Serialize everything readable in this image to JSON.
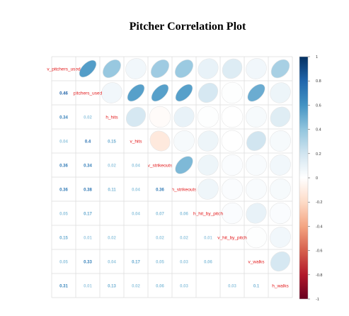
{
  "chart_data": {
    "type": "heatmap",
    "title": "Pitcher Correlation Plot",
    "variables": [
      "v_pitchers_used",
      "pitchers_used",
      "h_hits",
      "v_hits",
      "v_strikeouts",
      "h_strikeouts",
      "h_hit_by_pitch",
      "v_hit_by_pitch",
      "v_walks",
      "h_walks"
    ],
    "matrix": [
      [
        1,
        0.46,
        0.34,
        0.04,
        0.36,
        0.36,
        0.05,
        0.15,
        0.05,
        0.31
      ],
      [
        0.46,
        1,
        0.02,
        0.4,
        0.34,
        0.38,
        0.17,
        0.01,
        0.33,
        0.01
      ],
      [
        0.34,
        0.02,
        1,
        0.15,
        0.02,
        0.11,
        0.0,
        0.02,
        0.04,
        0.13
      ],
      [
        0.04,
        0.4,
        0.15,
        1,
        0.04,
        0.04,
        0.04,
        0.0,
        0.17,
        0.02
      ],
      [
        0.36,
        0.34,
        0.02,
        0.04,
        1,
        0.36,
        0.07,
        0.02,
        0.05,
        0.06
      ],
      [
        0.36,
        0.38,
        0.11,
        0.04,
        0.36,
        1,
        0.06,
        0.02,
        0.03,
        0.03
      ],
      [
        0.05,
        0.17,
        0.0,
        0.04,
        0.07,
        0.06,
        1,
        0.01,
        0.06,
        0.01
      ],
      [
        0.15,
        0.01,
        0.02,
        0.0,
        0.02,
        0.02,
        0.01,
        1,
        0.01,
        0.03
      ],
      [
        0.05,
        0.33,
        0.04,
        0.17,
        0.05,
        0.03,
        0.06,
        0.01,
        1,
        0.1
      ],
      [
        0.31,
        0.01,
        0.13,
        0.02,
        0.06,
        0.03,
        0.01,
        0.03,
        0.1,
        1
      ]
    ],
    "upper_triangle": [
      [
        0,
        0.56,
        0.38,
        0.06,
        0.36,
        0.37,
        0.1,
        0.15,
        0.06,
        0.33
      ],
      [
        0.56,
        0,
        0.06,
        0.55,
        0.55,
        0.55,
        0.18,
        0.01,
        0.5,
        0.08
      ],
      [
        0.38,
        0.06,
        0,
        0.18,
        -0.02,
        0.1,
        0.01,
        0.0,
        0.04,
        0.14
      ],
      [
        0.06,
        0.55,
        0.18,
        0,
        -0.12,
        0.04,
        0.08,
        0.0,
        0.2,
        0.04
      ],
      [
        0.36,
        0.55,
        -0.02,
        -0.12,
        0,
        0.45,
        0.08,
        0.02,
        0.03,
        0.06
      ],
      [
        0.37,
        0.55,
        0.1,
        0.04,
        0.45,
        0,
        0.07,
        0.02,
        0.03,
        0.04
      ],
      [
        0.1,
        0.18,
        0.01,
        0.08,
        0.08,
        0.07,
        0,
        0.02,
        0.1,
        0.02
      ],
      [
        0.15,
        0.01,
        0.0,
        0.0,
        0.02,
        0.02,
        0.02,
        0,
        0.01,
        0.06
      ],
      [
        0.06,
        0.5,
        0.04,
        0.2,
        0.03,
        0.03,
        0.1,
        0.01,
        0,
        0.18
      ],
      [
        0.33,
        0.08,
        0.14,
        0.04,
        0.06,
        0.04,
        0.02,
        0.06,
        0.18,
        0
      ]
    ],
    "lower_labels": [
      [],
      [
        "0.46"
      ],
      [
        "0.34",
        "0.02"
      ],
      [
        "0.04",
        "0.4",
        "0.15"
      ],
      [
        "0.36",
        "0.34",
        "0.02",
        "0.04"
      ],
      [
        "0.36",
        "0.38",
        "0.11",
        "0.04",
        "0.36"
      ],
      [
        "0.05",
        "0.17",
        "",
        "0.04",
        "0.07",
        "0.06"
      ],
      [
        "0.15",
        "0.01",
        "0.02",
        "",
        "0.02",
        "0.02",
        "0.01"
      ],
      [
        "0.05",
        "0.33",
        "0.04",
        "0.17",
        "0.05",
        "0.03",
        "0.06",
        ""
      ],
      [
        "0.31",
        "0.01",
        "0.13",
        "0.02",
        "0.06",
        "0.03",
        "",
        "0.03",
        "0.1"
      ]
    ],
    "colorbar": {
      "range": [
        -1,
        1
      ],
      "ticks": [
        "1",
        "0.8",
        "0.6",
        "0.4",
        "0.2",
        "0",
        "-0.2",
        "-0.4",
        "-0.6",
        "-0.8",
        "-1"
      ],
      "colors": [
        "#053061",
        "#2166ac",
        "#4393c3",
        "#92c5de",
        "#d1e5f0",
        "#ffffff",
        "#fddbc7",
        "#f4a582",
        "#d6604d",
        "#b2182b",
        "#67001f"
      ]
    },
    "diagonal_label_color": "#e31a1c",
    "grid": true
  }
}
